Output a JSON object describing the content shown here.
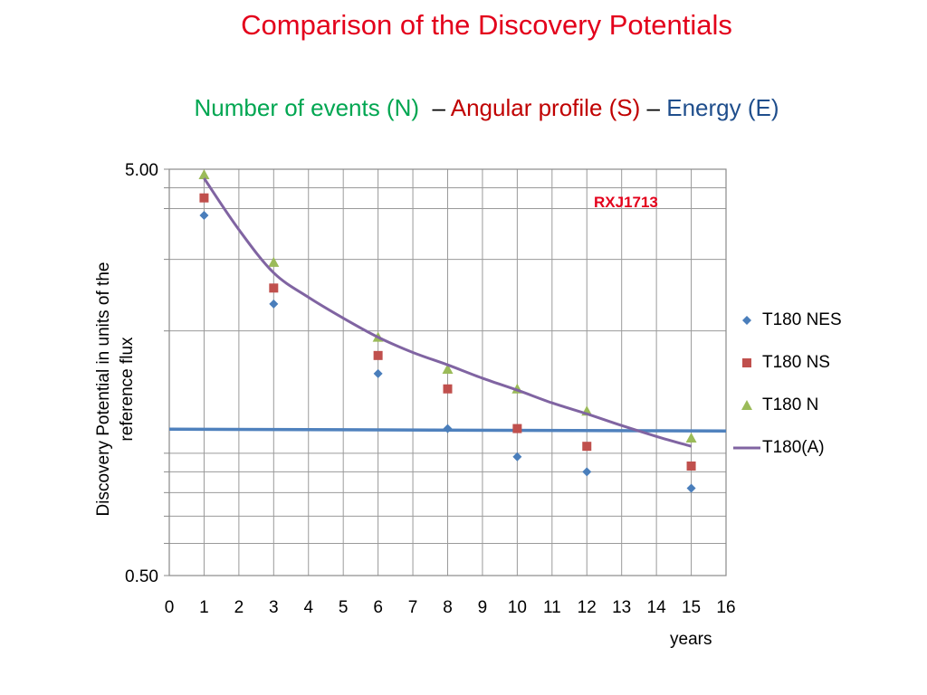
{
  "title": "Comparison of the Discovery Potentials",
  "subtitle": {
    "part_n": "Number of events (N)",
    "dash_1": "–",
    "part_s": "Angular profile (S)",
    "dash_2": "–",
    "part_e": "Energy (E)",
    "color_n": "#00a651",
    "color_s": "#c00000",
    "color_e": "#1f4e8c"
  },
  "chart_data": {
    "type": "scatter",
    "title": "Comparison of the Discovery Potentials",
    "xlabel": "years",
    "ylabel_line1": "Discovery Potential in units of the",
    "ylabel_line2": "reference flux",
    "annotation": "RXJ1713",
    "xlim": [
      0,
      16
    ],
    "ylim": [
      0.5,
      5.0
    ],
    "yscale": "log",
    "grid": true,
    "legend_position": "right",
    "x_ticks": [
      "0",
      "1",
      "2",
      "3",
      "4",
      "5",
      "6",
      "7",
      "8",
      "9",
      "10",
      "11",
      "12",
      "13",
      "14",
      "15",
      "16"
    ],
    "y_tick_labels": [
      "5.00",
      "0.50"
    ],
    "y_tick_values": [
      5.0,
      0.5
    ],
    "y_minor_gridlines": [
      1,
      2,
      3,
      4,
      4.5
    ],
    "reference_line": {
      "y": 1.14,
      "color": "#4f81bd"
    },
    "series": [
      {
        "name": "T180 NES",
        "marker": "diamond",
        "color": "#4a7ebb",
        "x": [
          1,
          3,
          6,
          8,
          10,
          12,
          15
        ],
        "y": [
          3.85,
          2.33,
          1.57,
          1.15,
          0.98,
          0.9,
          0.82
        ]
      },
      {
        "name": "T180 NS",
        "marker": "square",
        "color": "#c0504d",
        "x": [
          1,
          3,
          6,
          8,
          10,
          12,
          15
        ],
        "y": [
          4.25,
          2.55,
          1.74,
          1.44,
          1.15,
          1.04,
          0.93
        ]
      },
      {
        "name": "T180 N",
        "marker": "triangle",
        "color": "#9bbb59",
        "x": [
          1,
          3,
          6,
          8,
          10,
          12,
          15
        ],
        "y": [
          4.85,
          2.95,
          1.93,
          1.61,
          1.44,
          1.27,
          1.09
        ]
      },
      {
        "name": "T180(A)",
        "marker": "line",
        "color": "#8064a2",
        "x": [
          1,
          2,
          3,
          4,
          5,
          6,
          7,
          8,
          9,
          10,
          11,
          12,
          13,
          14,
          15
        ],
        "y": [
          4.75,
          3.55,
          2.78,
          2.42,
          2.15,
          1.93,
          1.77,
          1.65,
          1.53,
          1.43,
          1.33,
          1.25,
          1.17,
          1.1,
          1.04
        ]
      }
    ]
  }
}
